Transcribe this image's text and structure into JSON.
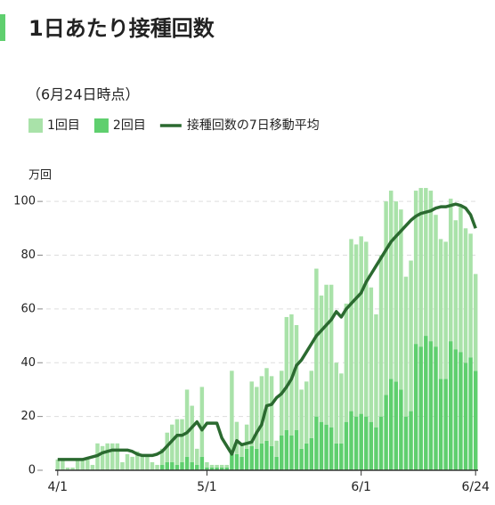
{
  "chart_data": {
    "type": "bar",
    "title": "1日あたり接種回数",
    "subtitle": "（6月24日時点）",
    "y_label": "万回",
    "stacked": true,
    "grid": true,
    "ylim": [
      0,
      107
    ],
    "yticks": [
      0,
      20,
      40,
      60,
      80,
      100
    ],
    "categories": [
      "4/1",
      null,
      null,
      null,
      null,
      null,
      null,
      null,
      null,
      null,
      null,
      null,
      null,
      null,
      null,
      null,
      null,
      null,
      null,
      null,
      null,
      null,
      null,
      null,
      null,
      null,
      null,
      null,
      null,
      null,
      "5/1",
      null,
      null,
      null,
      null,
      null,
      null,
      null,
      null,
      null,
      null,
      null,
      null,
      null,
      null,
      null,
      null,
      null,
      null,
      null,
      null,
      null,
      null,
      null,
      null,
      null,
      null,
      null,
      null,
      null,
      null,
      "6/1",
      null,
      null,
      null,
      null,
      null,
      null,
      null,
      null,
      null,
      null,
      null,
      null,
      null,
      null,
      null,
      null,
      null,
      null,
      null,
      null,
      null,
      null,
      "6/24"
    ],
    "series": [
      {
        "name": "1回目",
        "type": "bar",
        "color": "#a9e2a9",
        "values": [
          4,
          4,
          1,
          1,
          4,
          4,
          4,
          2,
          10,
          9,
          10,
          10,
          10,
          3,
          6,
          5,
          7,
          6,
          5,
          3,
          2,
          6,
          11,
          14,
          17,
          16,
          25,
          21,
          6,
          26,
          2,
          1,
          1,
          1,
          1,
          30,
          12,
          5,
          9,
          24,
          23,
          25,
          27,
          26,
          6,
          24,
          42,
          45,
          39,
          22,
          23,
          25,
          55,
          47,
          52,
          53,
          30,
          26,
          44,
          64,
          64,
          66,
          65,
          50,
          42,
          60,
          72,
          70,
          67,
          67,
          52,
          56,
          57,
          59,
          55,
          56,
          49,
          52,
          51,
          53,
          48,
          54,
          50,
          46,
          36
        ]
      },
      {
        "name": "2回目",
        "type": "bar",
        "color": "#5fcf6e",
        "values": [
          0,
          0,
          0,
          0,
          0,
          0,
          0,
          0,
          0,
          0,
          0,
          0,
          0,
          0,
          0,
          0,
          0,
          0,
          0,
          0,
          0,
          2,
          3,
          3,
          2,
          3,
          5,
          3,
          2,
          5,
          1,
          1,
          1,
          1,
          1,
          7,
          6,
          5,
          8,
          9,
          8,
          10,
          11,
          9,
          5,
          13,
          15,
          13,
          15,
          8,
          10,
          12,
          20,
          18,
          17,
          16,
          10,
          10,
          18,
          22,
          20,
          21,
          20,
          18,
          16,
          20,
          28,
          34,
          33,
          30,
          20,
          22,
          47,
          46,
          50,
          48,
          46,
          34,
          34,
          48,
          45,
          44,
          40,
          42,
          37
        ]
      },
      {
        "name": "接種回数の7日移動平均",
        "type": "line",
        "color": "#2b6a30",
        "values": [
          4,
          4,
          4,
          4,
          4,
          4,
          4.5,
          5,
          5.5,
          6.5,
          7,
          7.5,
          7.5,
          7.5,
          7.5,
          7,
          6,
          5.5,
          5.5,
          5.5,
          6,
          7,
          9,
          11,
          13,
          13,
          14,
          16,
          18,
          15,
          17.5,
          17.5,
          17.5,
          12,
          9,
          6,
          11,
          9.5,
          10,
          10.5,
          14,
          17,
          24,
          24.5,
          27,
          28.5,
          31,
          34,
          39,
          41,
          44,
          47,
          50,
          52,
          54,
          56,
          59,
          57,
          60,
          62,
          64,
          66,
          70,
          73,
          76,
          79,
          82,
          85,
          87,
          89,
          91,
          93,
          94.5,
          95.5,
          96,
          96.5,
          97.5,
          98,
          98,
          98.5,
          99,
          98.5,
          97.5,
          95,
          90
        ]
      }
    ]
  }
}
